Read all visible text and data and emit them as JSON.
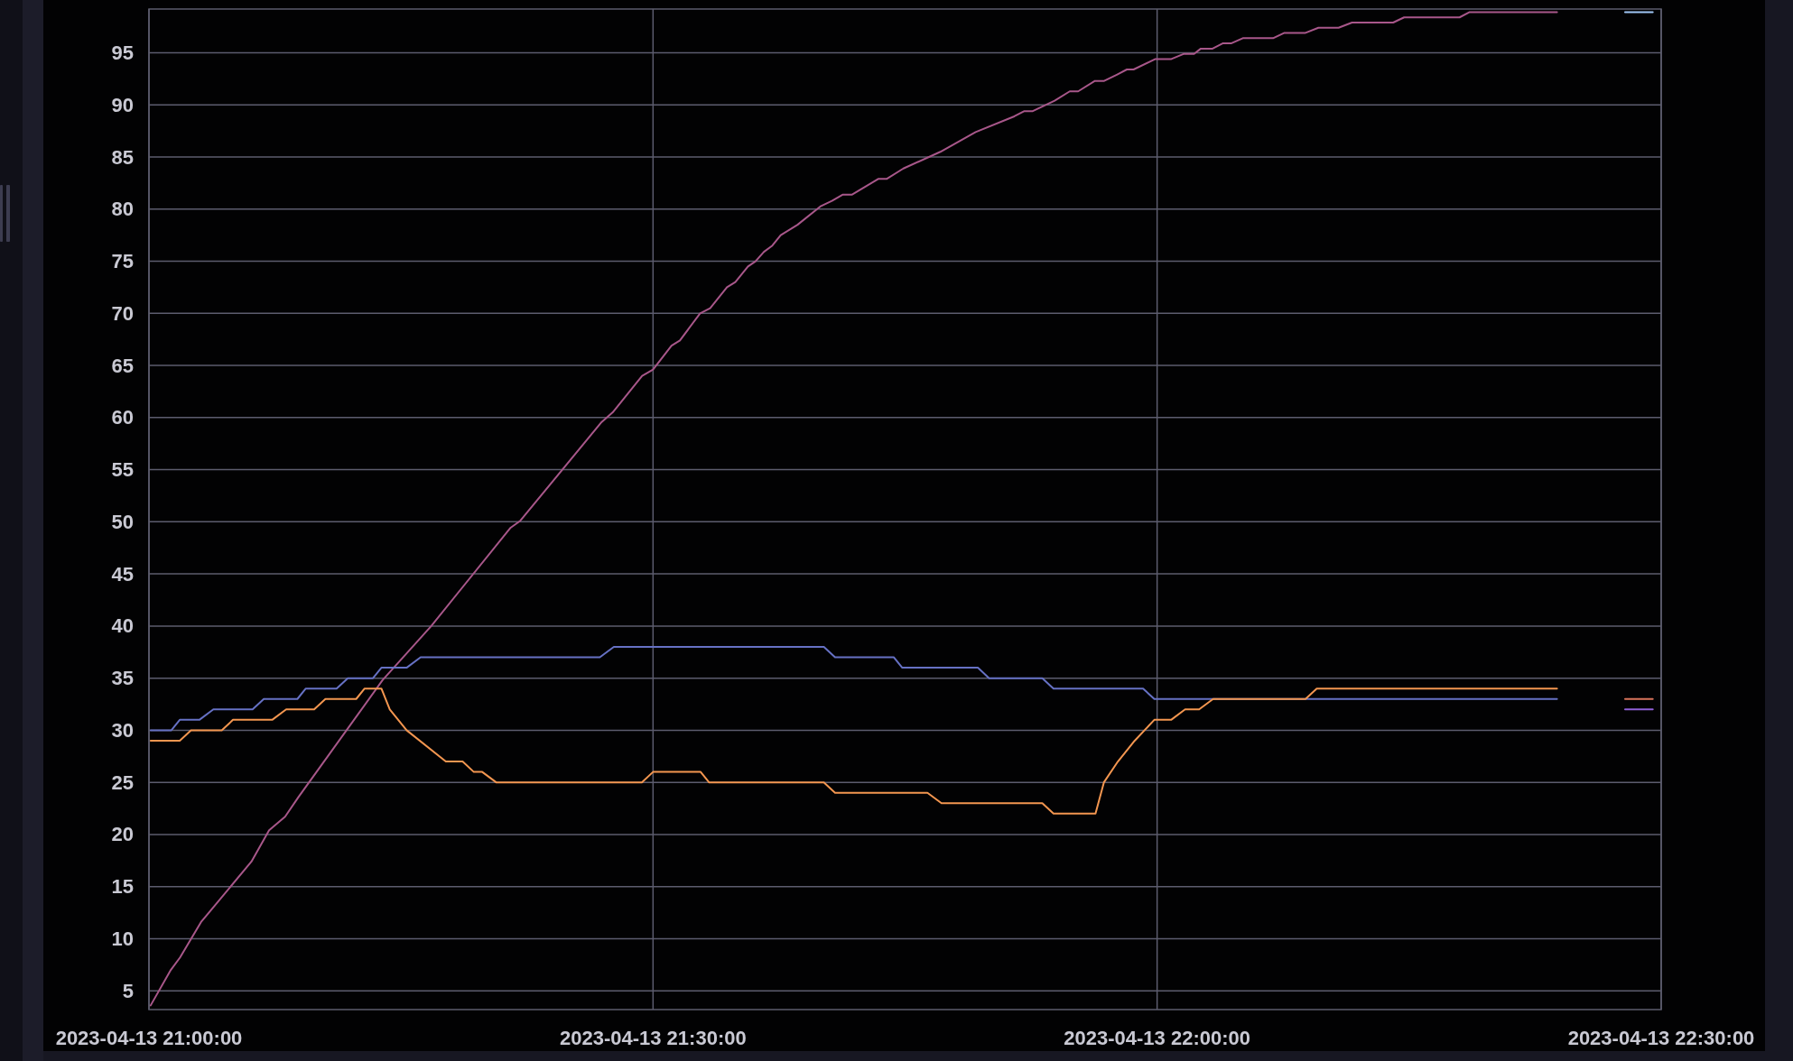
{
  "chart_data": {
    "type": "line",
    "xlim": [
      "2023-04-13T21:00",
      "2023-04-13T22:30"
    ],
    "ylim": [
      3.2,
      99.2
    ],
    "xticks": [
      {
        "value": "2023-04-13T21:00",
        "label": "2023-04-13 21:00:00"
      },
      {
        "value": "2023-04-13T21:30",
        "label": "2023-04-13 21:30:00"
      },
      {
        "value": "2023-04-13T22:00",
        "label": "2023-04-13 22:00:00"
      },
      {
        "value": "2023-04-13T22:30",
        "label": "2023-04-13 22:30:00"
      }
    ],
    "yticks": [
      5,
      10,
      15,
      20,
      25,
      30,
      35,
      40,
      45,
      50,
      55,
      60,
      65,
      70,
      75,
      80,
      85,
      90,
      95
    ],
    "grid": true,
    "series": [
      {
        "color": "#a8578a",
        "x": [
          "2023-04-13T21:00:06",
          "2023-04-13T21:01:18",
          "2023-04-13T21:01:51",
          "2023-04-13T21:03:06",
          "2023-04-13T21:06:06",
          "2023-04-13T21:07:09",
          "2023-04-13T21:08:06",
          "2023-04-13T21:08:54",
          "2023-04-13T21:13:54",
          "2023-04-13T21:16:48",
          "2023-04-13T21:21:30",
          "2023-04-13T21:22:06",
          "2023-04-13T21:26:54",
          "2023-04-13T21:27:36",
          "2023-04-13T21:29:21",
          "2023-04-13T21:30:00",
          "2023-04-13T21:31:06",
          "2023-04-13T21:31:36",
          "2023-04-13T21:32:48",
          "2023-04-13T21:33:24",
          "2023-04-13T21:34:24",
          "2023-04-13T21:34:54",
          "2023-04-13T21:35:39",
          "2023-04-13T21:36:06",
          "2023-04-13T21:36:36",
          "2023-04-13T21:37:06",
          "2023-04-13T21:37:36",
          "2023-04-13T21:38:36",
          "2023-04-13T21:40:00",
          "2023-04-13T21:40:39",
          "2023-04-13T21:41:18",
          "2023-04-13T21:41:51",
          "2023-04-13T21:43:24",
          "2023-04-13T21:43:54",
          "2023-04-13T21:44:54",
          "2023-04-13T21:47:06",
          "2023-04-13T21:49:12",
          "2023-04-13T21:51:30",
          "2023-04-13T21:52:06",
          "2023-04-13T21:52:36",
          "2023-04-13T21:53:54",
          "2023-04-13T21:54:48",
          "2023-04-13T21:55:18",
          "2023-04-13T21:56:18",
          "2023-04-13T21:56:51",
          "2023-04-13T21:57:36",
          "2023-04-13T21:58:12",
          "2023-04-13T21:58:36",
          "2023-04-13T21:59:54",
          "2023-04-13T22:00:51",
          "2023-04-13T22:01:36",
          "2023-04-13T22:02:12",
          "2023-04-13T22:02:36",
          "2023-04-13T22:03:18",
          "2023-04-13T22:03:54",
          "2023-04-13T22:04:24",
          "2023-04-13T22:05:06",
          "2023-04-13T22:06:54",
          "2023-04-13T22:07:33",
          "2023-04-13T22:08:48",
          "2023-04-13T22:09:36",
          "2023-04-13T22:10:48",
          "2023-04-13T22:11:36",
          "2023-04-13T22:14:03",
          "2023-04-13T22:14:42",
          "2023-04-13T22:18:00",
          "2023-04-13T22:18:36",
          "2023-04-13T22:23:48"
        ],
        "values": [
          3.6,
          7.0,
          8.2,
          11.6,
          17.4,
          20.4,
          21.7,
          23.6,
          34.8,
          40.0,
          49.4,
          50.1,
          59.5,
          60.5,
          64.0,
          64.6,
          66.9,
          67.4,
          70.0,
          70.5,
          72.5,
          73.0,
          74.5,
          75.0,
          75.9,
          76.5,
          77.5,
          78.5,
          80.3,
          80.8,
          81.4,
          81.4,
          82.9,
          82.9,
          83.9,
          85.5,
          87.4,
          88.9,
          89.4,
          89.4,
          90.4,
          91.3,
          91.3,
          92.3,
          92.3,
          92.9,
          93.4,
          93.4,
          94.4,
          94.4,
          94.9,
          94.9,
          95.4,
          95.4,
          95.9,
          95.9,
          96.4,
          96.4,
          96.9,
          96.9,
          97.4,
          97.4,
          97.9,
          97.9,
          98.4,
          98.4,
          98.9,
          98.9
        ]
      },
      {
        "color": "#6671c4",
        "x": [
          "2023-04-13T21:00:06",
          "2023-04-13T21:01:20",
          "2023-04-13T21:01:50",
          "2023-04-13T21:03:00",
          "2023-04-13T21:03:50",
          "2023-04-13T21:06:10",
          "2023-04-13T21:06:50",
          "2023-04-13T21:08:50",
          "2023-04-13T21:09:20",
          "2023-04-13T21:11:10",
          "2023-04-13T21:11:50",
          "2023-04-13T21:13:20",
          "2023-04-13T21:13:50",
          "2023-04-13T21:15:20",
          "2023-04-13T21:16:10",
          "2023-04-13T21:26:50",
          "2023-04-13T21:27:40",
          "2023-04-13T21:40:10",
          "2023-04-13T21:40:50",
          "2023-04-13T21:44:20",
          "2023-04-13T21:44:50",
          "2023-04-13T21:49:20",
          "2023-04-13T21:50:00",
          "2023-04-13T21:53:10",
          "2023-04-13T21:53:50",
          "2023-04-13T21:59:10",
          "2023-04-13T21:59:50",
          "2023-04-13T22:23:48"
        ],
        "values": [
          30,
          30,
          31,
          31,
          32,
          32,
          33,
          33,
          34,
          34,
          35,
          35,
          36,
          36,
          37,
          37,
          38,
          38,
          37,
          37,
          36,
          36,
          35,
          35,
          34,
          34,
          33,
          33
        ]
      },
      {
        "color": "#f39650",
        "x": [
          "2023-04-13T21:00:06",
          "2023-04-13T21:01:50",
          "2023-04-13T21:02:30",
          "2023-04-13T21:04:20",
          "2023-04-13T21:05:00",
          "2023-04-13T21:07:20",
          "2023-04-13T21:08:10",
          "2023-04-13T21:09:50",
          "2023-04-13T21:10:30",
          "2023-04-13T21:12:20",
          "2023-04-13T21:12:50",
          "2023-04-13T21:13:50",
          "2023-04-13T21:14:20",
          "2023-04-13T21:15:20",
          "2023-04-13T21:17:40",
          "2023-04-13T21:18:40",
          "2023-04-13T21:19:20",
          "2023-04-13T21:19:50",
          "2023-04-13T21:20:40",
          "2023-04-13T21:29:20",
          "2023-04-13T21:30:00",
          "2023-04-13T21:32:50",
          "2023-04-13T21:33:20",
          "2023-04-13T21:40:10",
          "2023-04-13T21:40:50",
          "2023-04-13T21:46:20",
          "2023-04-13T21:47:10",
          "2023-04-13T21:53:10",
          "2023-04-13T21:53:50",
          "2023-04-13T21:56:20",
          "2023-04-13T21:56:50",
          "2023-04-13T21:57:40",
          "2023-04-13T21:58:40",
          "2023-04-13T21:59:50",
          "2023-04-13T22:00:50",
          "2023-04-13T22:01:40",
          "2023-04-13T22:02:30",
          "2023-04-13T22:03:20",
          "2023-04-13T22:08:50",
          "2023-04-13T22:09:30",
          "2023-04-13T22:23:48"
        ],
        "values": [
          29,
          29,
          30,
          30,
          31,
          31,
          32,
          32,
          33,
          33,
          34,
          34,
          32,
          30,
          27,
          27,
          26,
          26,
          25,
          25,
          26,
          26,
          25,
          25,
          24,
          24,
          23,
          23,
          22,
          22,
          25,
          27,
          29,
          31,
          31,
          32,
          32,
          33,
          33,
          34,
          34
        ]
      },
      {
        "color": "#9fc6f5",
        "x": [
          "2023-04-13T22:27:51",
          "2023-04-13T22:29:30"
        ],
        "values": [
          98.9,
          98.9
        ]
      },
      {
        "color": "#d9745c",
        "x": [
          "2023-04-13T22:27:51",
          "2023-04-13T22:29:30"
        ],
        "values": [
          33,
          33
        ]
      },
      {
        "color": "#8f60d8",
        "x": [
          "2023-04-13T22:27:51",
          "2023-04-13T22:29:30"
        ],
        "values": [
          32,
          32
        ]
      }
    ]
  }
}
